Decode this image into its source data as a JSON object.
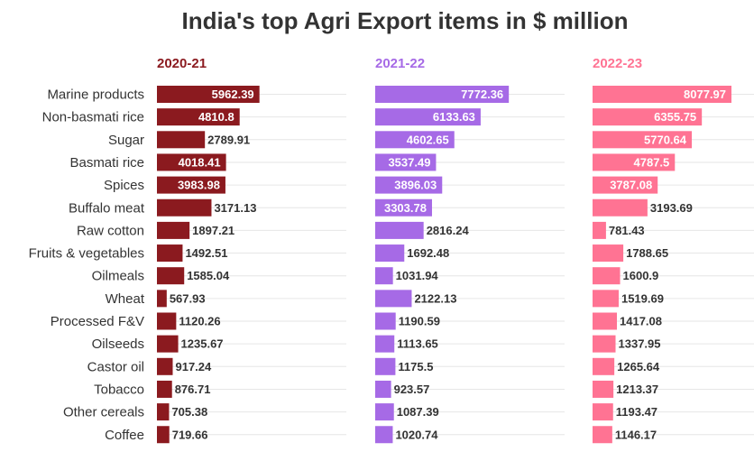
{
  "chart_data": {
    "type": "bar",
    "orientation": "horizontal",
    "title": "India's top Agri Export items in $ million",
    "categories": [
      "Marine products",
      "Non-basmati rice",
      "Sugar",
      "Basmati rice",
      "Spices",
      "Buffalo meat",
      "Raw cotton",
      "Fruits & vegetables",
      "Oilmeals",
      "Wheat",
      "Processed F&V",
      "Oilseeds",
      "Castor oil",
      "Tobacco",
      "Other cereals",
      "Coffee"
    ],
    "series": [
      {
        "name": "2020-21",
        "color": "#8b1a1f",
        "values": [
          5962.39,
          4810.8,
          2789.91,
          4018.41,
          3983.98,
          3171.13,
          1897.21,
          1492.51,
          1585.04,
          567.93,
          1120.26,
          1235.67,
          917.24,
          876.71,
          705.38,
          719.66
        ]
      },
      {
        "name": "2021-22",
        "color": "#a66ae6",
        "values": [
          7772.36,
          6133.63,
          4602.65,
          3537.49,
          3896.03,
          3303.78,
          2816.24,
          1692.48,
          1031.94,
          2122.13,
          1190.59,
          1113.65,
          1175.5,
          923.57,
          1087.39,
          1020.74
        ]
      },
      {
        "name": "2022-23",
        "color": "#ff7393",
        "values": [
          8077.97,
          6355.75,
          5770.64,
          4787.5,
          3787.08,
          3193.69,
          781.43,
          1788.65,
          1600.9,
          1519.69,
          1417.08,
          1337.95,
          1265.64,
          1213.37,
          1193.47,
          1146.17
        ]
      }
    ],
    "xlim": [
      0,
      8077.97
    ],
    "legend": "panel-headers",
    "grid": true
  }
}
